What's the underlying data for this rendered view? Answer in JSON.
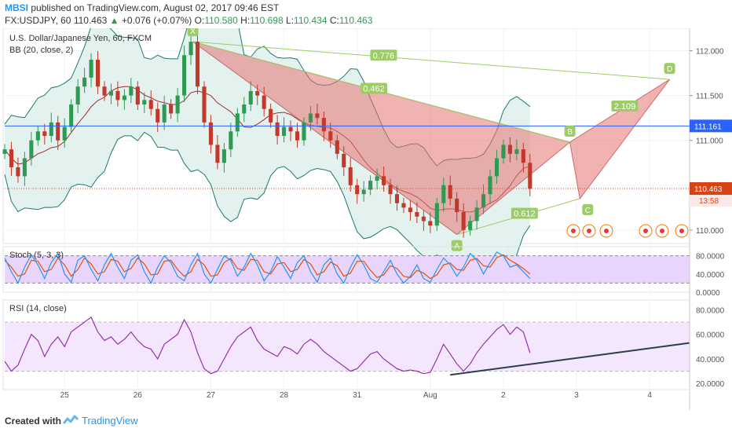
{
  "header": {
    "publisher": "MBSI",
    "published_text": "published on TradingView.com, August 02, 2017 09:46 EST",
    "symbol": "FX:USDJPY, 60",
    "price": "110.463",
    "change_arrow": "▲",
    "change": "+0.076 (+0.07%)",
    "open_label": "O:",
    "open": "110.580",
    "high_label": "H:",
    "high": "110.698",
    "low_label": "L:",
    "low": "110.434",
    "close_label": "C:",
    "close": "110.463"
  },
  "footer": {
    "created_with": "Created with",
    "brand": "TradingView"
  },
  "colors": {
    "up": "#2e9a53",
    "down": "#c0392b",
    "pattern": "#e57373",
    "stoch_k": "#2196f3",
    "stoch_d": "#e65100",
    "rsi": "#8e24aa",
    "bb_fill": "#e3f2ee",
    "stoch_band": "#e9d5fb",
    "rsi_band": "#f4e6fd",
    "hline": "#2962ff",
    "price_label": "#d84315",
    "trendline": "#2c3e50"
  },
  "chart_data": [
    {
      "type": "candlestick",
      "title": "U.S. Dollar/Japanese Yen, 60, FXCM",
      "indicator": "BB (20, close, 2)",
      "x_ticks": [
        "25",
        "26",
        "27",
        "28",
        "31",
        "Aug",
        "2",
        "3",
        "4"
      ],
      "y_ticks": [
        "110.000",
        "110.500",
        "111.000",
        "111.500",
        "112.000"
      ],
      "ylim": [
        109.85,
        112.25
      ],
      "current_price": "110.463",
      "countdown": "13:58",
      "horizontal_line": "111.161",
      "horizontal_line_value": 111.161,
      "current_price_value": 110.463,
      "close_series": [
        110.9,
        110.7,
        110.6,
        110.8,
        111.0,
        111.1,
        111.05,
        111.2,
        111.0,
        111.15,
        111.4,
        111.6,
        111.7,
        111.9,
        111.6,
        111.5,
        111.55,
        111.45,
        111.5,
        111.6,
        111.4,
        111.45,
        111.35,
        111.2,
        111.4,
        111.3,
        111.5,
        111.95,
        112.1,
        111.6,
        111.2,
        110.95,
        110.75,
        110.9,
        111.1,
        111.3,
        111.4,
        111.55,
        111.5,
        111.35,
        111.2,
        111.05,
        111.15,
        111.1,
        111.0,
        111.2,
        111.3,
        111.25,
        111.1,
        111.0,
        110.85,
        110.7,
        110.5,
        110.4,
        110.45,
        110.55,
        110.6,
        110.5,
        110.4,
        110.3,
        110.25,
        110.2,
        110.15,
        110.1,
        110.05,
        110.3,
        110.5,
        110.35,
        110.2,
        110.0,
        110.1,
        110.25,
        110.4,
        110.6,
        110.8,
        110.95,
        110.85,
        110.9,
        110.75,
        110.46
      ],
      "harmonic_points": [
        {
          "label": "X",
          "date_index": 28.3,
          "price": 112.1
        },
        {
          "label": "A",
          "date_index": 68.0,
          "price": 109.95
        },
        {
          "label": "B",
          "date_index": 85.0,
          "price": 110.98
        },
        {
          "label": "C",
          "date_index": 86.5,
          "price": 110.35
        },
        {
          "label": "D",
          "date_index": 100.0,
          "price": 111.68
        }
      ],
      "pattern_ratios": [
        {
          "label": "0.776",
          "anchor": "X-D"
        },
        {
          "label": "0.462",
          "anchor": "X-B"
        },
        {
          "label": "2.109",
          "anchor": "B-D"
        },
        {
          "label": "0.612",
          "anchor": "A-C"
        }
      ]
    },
    {
      "type": "line",
      "title": "Stoch (5, 3, 3)",
      "y_ticks": [
        "0.0000",
        "40.0000",
        "80.0000"
      ],
      "ylim": [
        0,
        100
      ],
      "band": [
        20,
        80
      ],
      "series": [
        {
          "values": [
            75,
            45,
            20,
            55,
            82,
            60,
            30,
            65,
            85,
            40,
            22,
            70,
            80,
            50,
            25,
            60,
            85,
            55,
            30,
            70,
            82,
            45,
            20,
            55,
            80,
            65,
            35,
            25,
            60,
            85,
            40,
            20,
            50,
            80,
            70,
            35,
            55,
            85,
            60,
            25,
            45,
            78,
            55,
            30,
            65,
            80,
            45,
            22,
            60,
            75,
            40,
            20,
            55,
            82,
            60,
            30,
            22,
            45,
            70,
            40,
            20,
            35,
            60,
            30,
            22,
            50,
            75,
            60,
            35,
            55,
            85,
            70,
            40,
            65,
            88,
            80,
            55,
            60,
            45,
            30
          ]
        },
        {
          "values": [
            70,
            55,
            35,
            40,
            70,
            68,
            45,
            50,
            75,
            60,
            35,
            50,
            75,
            62,
            40,
            45,
            72,
            68,
            45,
            52,
            75,
            62,
            38,
            40,
            68,
            70,
            50,
            35,
            45,
            72,
            60,
            35,
            38,
            65,
            74,
            52,
            48,
            72,
            70,
            45,
            40,
            62,
            65,
            45,
            50,
            72,
            62,
            38,
            45,
            66,
            58,
            35,
            42,
            68,
            68,
            48,
            32,
            38,
            58,
            52,
            35,
            32,
            48,
            42,
            30,
            38,
            60,
            64,
            50,
            48,
            70,
            74,
            58,
            55,
            76,
            82,
            70,
            62,
            52,
            40
          ]
        }
      ]
    },
    {
      "type": "line",
      "title": "RSI (14, close)",
      "y_ticks": [
        "20.0000",
        "40.0000",
        "60.0000",
        "80.0000"
      ],
      "ylim": [
        15,
        88
      ],
      "band": [
        30,
        70
      ],
      "series": [
        {
          "values": [
            38,
            30,
            35,
            48,
            60,
            55,
            42,
            52,
            58,
            50,
            62,
            66,
            70,
            74,
            62,
            55,
            58,
            52,
            56,
            62,
            55,
            50,
            48,
            40,
            52,
            56,
            60,
            72,
            62,
            45,
            32,
            28,
            30,
            40,
            50,
            58,
            62,
            66,
            55,
            48,
            45,
            42,
            50,
            48,
            44,
            52,
            56,
            52,
            46,
            42,
            38,
            34,
            30,
            32,
            38,
            44,
            46,
            40,
            36,
            32,
            30,
            31,
            30,
            28,
            29,
            40,
            52,
            44,
            36,
            30,
            36,
            45,
            52,
            58,
            64,
            68,
            60,
            66,
            62,
            45
          ]
        }
      ],
      "trendline": {
        "from_index": 67.0,
        "from_value": 27.0,
        "to_index": 103.0,
        "to_value": 53.0
      }
    }
  ]
}
